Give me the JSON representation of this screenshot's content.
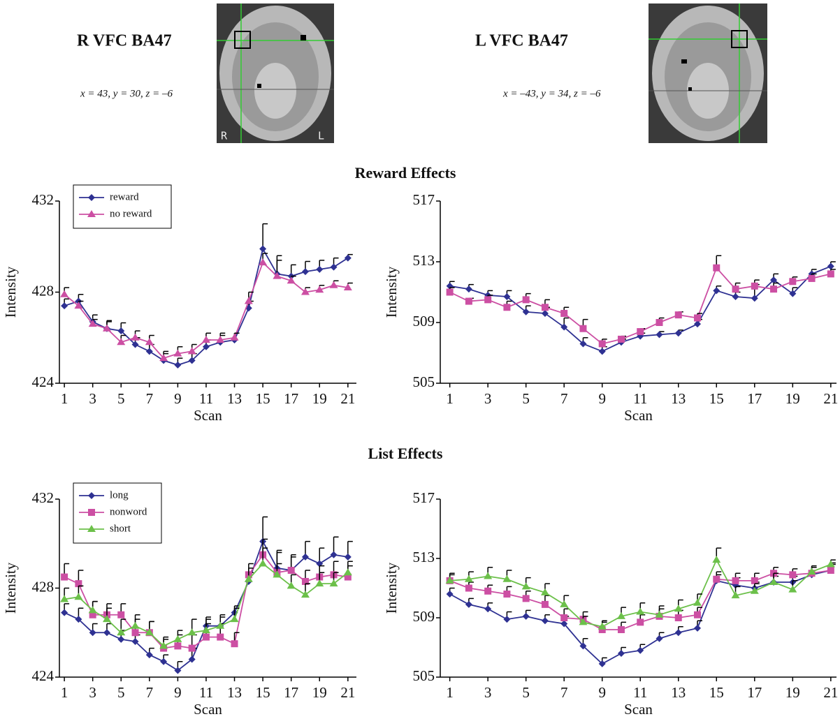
{
  "panels": [
    {
      "title": "R VFC BA47",
      "coords": "x = 43, y = 30, z = –6",
      "image_labels": [
        "R",
        "L"
      ]
    },
    {
      "title": "L VFC BA47",
      "coords": "x = –43, y = 34, z = –6"
    }
  ],
  "sections": [
    "Reward Effects",
    "List Effects"
  ],
  "chart_data": [
    {
      "type": "line",
      "x_label": "Scan",
      "y_label": "Intensity",
      "legend": "upper left",
      "xlim": [
        0.65,
        21.6
      ],
      "ylim": [
        424,
        432
      ],
      "xticks": [
        1,
        3,
        5,
        7,
        9,
        11,
        13,
        15,
        17,
        19,
        21
      ],
      "yticks": [
        424,
        428,
        432
      ],
      "x": [
        1,
        2,
        3,
        4,
        5,
        6,
        7,
        8,
        9,
        10,
        11,
        12,
        13,
        14,
        15,
        16,
        17,
        18,
        19,
        20,
        21
      ],
      "series": [
        {
          "name": "reward",
          "color": "#2e3192",
          "marker": "diamond",
          "values": [
            427.4,
            427.6,
            426.7,
            426.4,
            426.3,
            425.7,
            425.4,
            425.0,
            424.8,
            425.0,
            425.6,
            425.8,
            425.9,
            427.3,
            429.9,
            428.8,
            428.7,
            428.9,
            429.0,
            429.1,
            429.5
          ],
          "errors": [
            0.3,
            0.3,
            0.3,
            0.35,
            0.35,
            0.3,
            0.3,
            0.3,
            0.3,
            0.3,
            0.3,
            0.3,
            0.3,
            0.3,
            1.1,
            0.8,
            0.5,
            0.45,
            0.4,
            0.4,
            0.15
          ]
        },
        {
          "name": "no reward",
          "color": "#cc4fa3",
          "marker": "triangle",
          "values": [
            427.9,
            427.4,
            426.6,
            426.4,
            425.8,
            426.0,
            425.8,
            425.1,
            425.3,
            425.4,
            425.9,
            425.9,
            426.0,
            427.6,
            429.3,
            428.7,
            428.5,
            428.0,
            428.1,
            428.3,
            428.2
          ],
          "errors": [
            0.3,
            0.2,
            0.2,
            0.3,
            0.3,
            0.3,
            0.3,
            0.3,
            0.3,
            0.3,
            0.3,
            0.3,
            0.2,
            0.4,
            0.4,
            0.7,
            0.2,
            0.2,
            0.2,
            0.2,
            0.2
          ]
        }
      ]
    },
    {
      "type": "line",
      "x_label": "Scan",
      "y_label": "Intensity",
      "xlim": [
        0.5,
        21.3
      ],
      "ylim": [
        505,
        517
      ],
      "xticks": [
        1,
        3,
        5,
        7,
        9,
        11,
        13,
        15,
        17,
        19,
        21
      ],
      "yticks": [
        505,
        509,
        513,
        517
      ],
      "x": [
        1,
        2,
        3,
        4,
        5,
        6,
        7,
        8,
        9,
        10,
        11,
        12,
        13,
        14,
        15,
        16,
        17,
        18,
        19,
        20,
        21
      ],
      "series": [
        {
          "color": "#2e3192",
          "marker": "diamond",
          "values": [
            511.4,
            511.2,
            510.8,
            510.7,
            509.7,
            509.6,
            508.7,
            507.6,
            507.1,
            507.7,
            508.1,
            508.2,
            508.3,
            508.9,
            511.1,
            510.7,
            510.6,
            511.8,
            510.9,
            512.2,
            512.7
          ],
          "errors": [
            0.3,
            0.3,
            0.3,
            0.4,
            0.4,
            0.4,
            0.6,
            0.4,
            0.3,
            0.2,
            0.2,
            0.2,
            0.2,
            0.3,
            0.3,
            0.3,
            0.9,
            0.4,
            0.4,
            0.3,
            0.3
          ]
        },
        {
          "color": "#cc4fa3",
          "marker": "square",
          "values": [
            511.0,
            510.4,
            510.5,
            510.0,
            510.5,
            510.0,
            509.6,
            508.6,
            507.6,
            507.9,
            508.4,
            509.0,
            509.5,
            509.3,
            512.6,
            511.2,
            511.4,
            511.2,
            511.7,
            511.9,
            512.2
          ],
          "errors": [
            0.3,
            0.2,
            0.3,
            0.4,
            0.4,
            0.5,
            0.4,
            0.6,
            0.3,
            0.2,
            0.2,
            0.3,
            0.2,
            0.3,
            0.8,
            0.4,
            0.4,
            0.4,
            0.3,
            0.3,
            0.3
          ]
        }
      ]
    },
    {
      "type": "line",
      "x_label": "Scan",
      "y_label": "Intensity",
      "legend": "upper left",
      "xlim": [
        0.65,
        21.6
      ],
      "ylim": [
        424,
        432
      ],
      "xticks": [
        1,
        3,
        5,
        7,
        9,
        11,
        13,
        15,
        17,
        19,
        21
      ],
      "yticks": [
        424,
        428,
        432
      ],
      "x": [
        1,
        2,
        3,
        4,
        5,
        6,
        7,
        8,
        9,
        10,
        11,
        12,
        13,
        14,
        15,
        16,
        17,
        18,
        19,
        20,
        21
      ],
      "series": [
        {
          "name": "long",
          "color": "#2e3192",
          "marker": "diamond",
          "values": [
            426.9,
            426.6,
            426.0,
            426.0,
            425.7,
            425.6,
            425.0,
            424.7,
            424.3,
            424.8,
            426.3,
            426.3,
            426.9,
            428.3,
            430.1,
            428.9,
            428.8,
            429.4,
            429.1,
            429.5,
            429.4
          ],
          "errors": [
            0.4,
            0.5,
            0.4,
            0.4,
            0.4,
            0.3,
            0.3,
            0.3,
            0.4,
            0.5,
            0.4,
            0.4,
            0.3,
            0.4,
            1.1,
            0.8,
            0.7,
            0.7,
            0.7,
            0.8,
            0.7
          ]
        },
        {
          "name": "nonword",
          "color": "#cc4fa3",
          "marker": "square",
          "values": [
            428.5,
            428.2,
            426.8,
            426.8,
            426.8,
            426.0,
            426.0,
            425.3,
            425.4,
            425.3,
            425.8,
            425.8,
            425.5,
            428.6,
            429.5,
            428.7,
            428.8,
            428.3,
            428.5,
            428.6,
            428.5
          ],
          "errors": [
            0.6,
            0.6,
            0.6,
            0.5,
            0.5,
            0.6,
            0.5,
            0.4,
            0.5,
            0.6,
            0.6,
            0.6,
            0.5,
            0.5,
            0.7,
            0.9,
            0.6,
            0.5,
            0.5,
            0.6,
            0.5
          ]
        },
        {
          "name": "short",
          "color": "#6cc04a",
          "marker": "triangle",
          "values": [
            427.5,
            427.6,
            427.0,
            426.6,
            426.0,
            426.3,
            426.0,
            425.4,
            425.7,
            426.0,
            426.1,
            426.3,
            426.6,
            428.4,
            429.1,
            428.6,
            428.1,
            427.7,
            428.2,
            428.2,
            428.7
          ],
          "errors": [
            0.5,
            0.5,
            0.4,
            0.5,
            0.6,
            0.5,
            0.5,
            0.4,
            0.4,
            0.6,
            0.5,
            0.5,
            0.5,
            0.5,
            0.7,
            0.5,
            0.5,
            0.5,
            0.5,
            0.5,
            0.5
          ]
        }
      ]
    },
    {
      "type": "line",
      "x_label": "Scan",
      "y_label": "Intensity",
      "xlim": [
        0.5,
        21.3
      ],
      "ylim": [
        505,
        517
      ],
      "xticks": [
        1,
        3,
        5,
        7,
        9,
        11,
        13,
        15,
        17,
        19,
        21
      ],
      "yticks": [
        505,
        509,
        513,
        517
      ],
      "x": [
        1,
        2,
        3,
        4,
        5,
        6,
        7,
        8,
        9,
        10,
        11,
        12,
        13,
        14,
        15,
        16,
        17,
        18,
        19,
        20,
        21
      ],
      "series": [
        {
          "color": "#2e3192",
          "marker": "diamond",
          "values": [
            510.6,
            509.9,
            509.6,
            508.9,
            509.1,
            508.8,
            508.6,
            507.1,
            505.9,
            506.6,
            506.8,
            507.6,
            508.0,
            508.3,
            511.5,
            511.2,
            511.0,
            511.4,
            511.4,
            511.9,
            512.2
          ],
          "errors": [
            0.4,
            0.4,
            0.4,
            0.5,
            0.4,
            0.4,
            0.5,
            0.5,
            0.4,
            0.4,
            0.4,
            0.4,
            0.4,
            0.5,
            0.4,
            0.5,
            0.4,
            0.4,
            0.4,
            0.5,
            0.5
          ]
        },
        {
          "color": "#cc4fa3",
          "marker": "square",
          "values": [
            511.5,
            511.0,
            510.8,
            510.6,
            510.3,
            509.9,
            509.0,
            508.9,
            508.2,
            508.2,
            508.7,
            509.1,
            509.0,
            509.2,
            511.6,
            511.5,
            511.5,
            512.0,
            511.9,
            512.0,
            512.2
          ],
          "errors": [
            0.4,
            0.4,
            0.4,
            0.5,
            0.5,
            0.6,
            0.6,
            0.5,
            0.5,
            0.5,
            0.5,
            0.5,
            0.5,
            0.5,
            0.5,
            0.5,
            0.5,
            0.4,
            0.4,
            0.4,
            0.4
          ]
        },
        {
          "color": "#6cc04a",
          "marker": "triangle",
          "values": [
            511.5,
            511.6,
            511.8,
            511.6,
            511.1,
            510.7,
            509.9,
            508.7,
            508.4,
            509.1,
            509.4,
            509.2,
            509.6,
            510.0,
            512.9,
            510.5,
            510.8,
            511.4,
            510.9,
            512.1,
            512.6
          ],
          "errors": [
            0.5,
            0.5,
            0.6,
            0.6,
            0.6,
            0.6,
            0.6,
            0.4,
            0.4,
            0.6,
            0.6,
            0.6,
            0.6,
            0.6,
            0.8,
            0.6,
            0.5,
            0.6,
            0.6,
            0.4,
            0.3
          ]
        }
      ]
    }
  ]
}
